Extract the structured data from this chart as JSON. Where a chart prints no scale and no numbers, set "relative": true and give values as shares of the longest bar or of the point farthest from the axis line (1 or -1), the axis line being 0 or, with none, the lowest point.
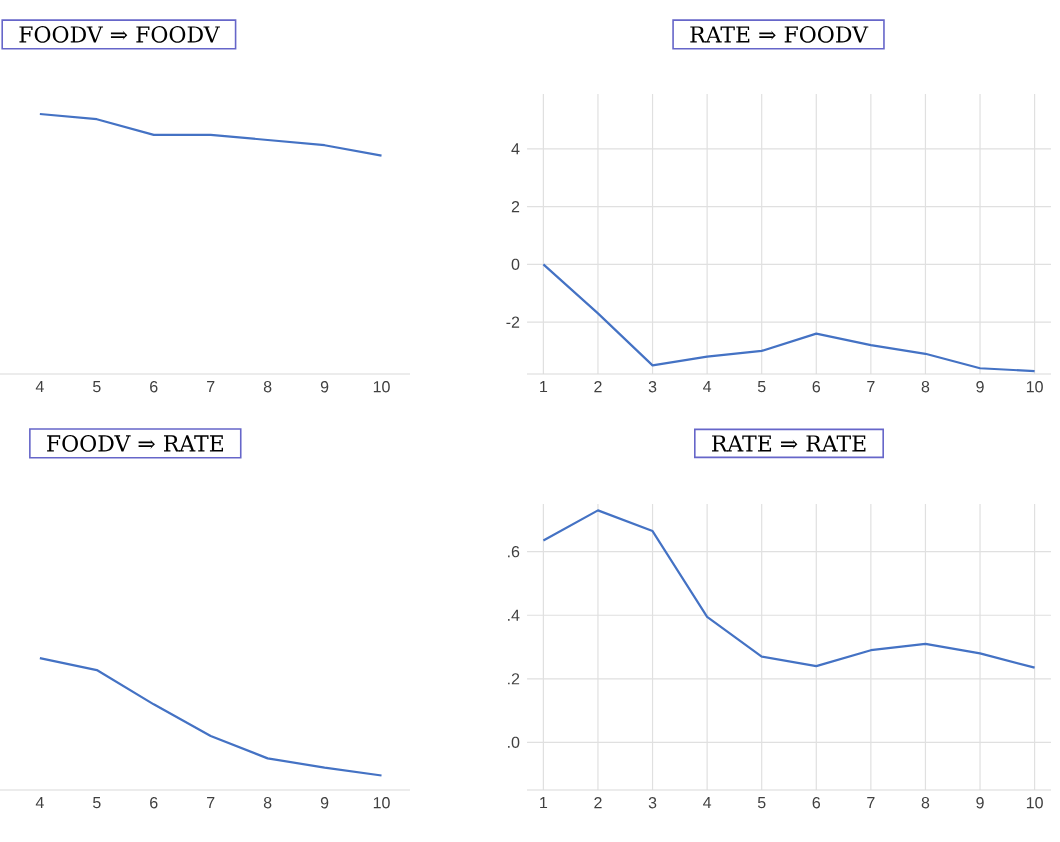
{
  "chart_data": [
    {
      "type": "line",
      "title": "FOODV ⇒ FOODV",
      "relative": true,
      "tick_labels": "x",
      "x": [
        4,
        5,
        6,
        7,
        8,
        9,
        10
      ],
      "xlim": [
        3.3,
        10.5
      ],
      "xticks": [
        4,
        5,
        6,
        7,
        8,
        9,
        10
      ],
      "color": "#4472c4",
      "values": [
        1,
        0.98,
        0.92,
        0.92,
        0.9,
        0.88,
        0.84
      ]
    },
    {
      "type": "line",
      "title": "RATE ⇒ FOODV",
      "grid": true,
      "x": [
        1,
        2,
        3,
        4,
        5,
        6,
        7,
        8,
        9,
        10
      ],
      "xlim": [
        0.7,
        10.3
      ],
      "xticks": [
        1,
        2,
        3,
        4,
        5,
        6,
        7,
        8,
        9,
        10
      ],
      "ylim": [
        -3.8,
        5.9
      ],
      "yticks": [
        -2,
        0,
        2,
        4
      ],
      "color": "#4472c4",
      "values": [
        0.0,
        -1.7,
        -3.5,
        -3.2,
        -3.0,
        -2.4,
        -2.8,
        -3.1,
        -3.6,
        -3.7
      ]
    },
    {
      "type": "line",
      "title": "FOODV ⇒ RATE",
      "relative": true,
      "tick_labels": "x",
      "x": [
        4,
        5,
        6,
        7,
        8,
        9,
        10
      ],
      "xlim": [
        3.3,
        10.5
      ],
      "xticks": [
        4,
        5,
        6,
        7,
        8,
        9,
        10
      ],
      "color": "#4472c4",
      "values": [
        1,
        0.91,
        0.65,
        0.41,
        0.24,
        0.17,
        0.11
      ]
    },
    {
      "type": "line",
      "title": "RATE ⇒ RATE",
      "grid": true,
      "x": [
        1,
        2,
        3,
        4,
        5,
        6,
        7,
        8,
        9,
        10
      ],
      "xlim": [
        0.7,
        10.3
      ],
      "xticks": [
        1,
        2,
        3,
        4,
        5,
        6,
        7,
        8,
        9,
        10
      ],
      "ylim": [
        -0.15,
        0.75
      ],
      "yticks": [
        {
          "value": 0.0,
          "label": ".0"
        },
        {
          "value": 0.2,
          "label": ".2"
        },
        {
          "value": 0.4,
          "label": ".4"
        },
        {
          "value": 0.6,
          "label": ".6"
        }
      ],
      "color": "#4472c4",
      "values": [
        0.635,
        0.73,
        0.665,
        0.395,
        0.27,
        0.24,
        0.29,
        0.31,
        0.28,
        0.235
      ]
    }
  ]
}
